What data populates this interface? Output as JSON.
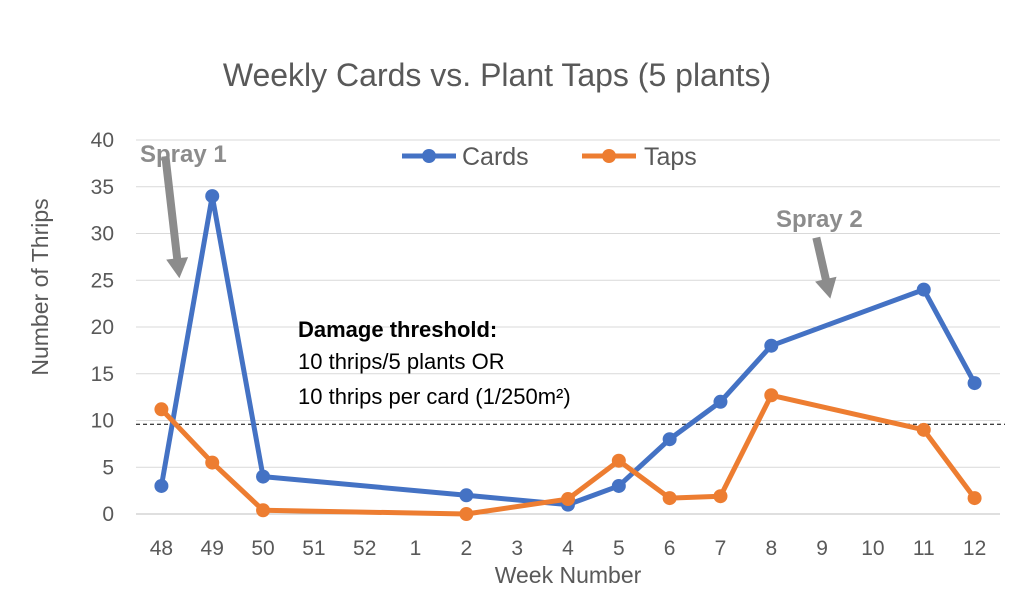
{
  "chart_data": {
    "type": "line",
    "title": "Weekly Cards vs. Plant Taps (5 plants)",
    "xlabel": "Week Number",
    "ylabel": "Number of Thrips",
    "categories": [
      "48",
      "49",
      "50",
      "51",
      "52",
      "1",
      "2",
      "3",
      "4",
      "5",
      "6",
      "7",
      "8",
      "9",
      "10",
      "11",
      "12"
    ],
    "ylim": [
      0,
      40
    ],
    "yticks": [
      0,
      5,
      10,
      15,
      20,
      25,
      30,
      35,
      40
    ],
    "grid": true,
    "legend_position": "top",
    "series": [
      {
        "name": "Cards",
        "color": "#4472c4",
        "points": [
          {
            "x": "48",
            "y": 3
          },
          {
            "x": "49",
            "y": 34
          },
          {
            "x": "50",
            "y": 4
          },
          {
            "x": "2",
            "y": 2
          },
          {
            "x": "4",
            "y": 1
          },
          {
            "x": "5",
            "y": 3
          },
          {
            "x": "6",
            "y": 8
          },
          {
            "x": "7",
            "y": 12
          },
          {
            "x": "8",
            "y": 18
          },
          {
            "x": "11",
            "y": 24
          },
          {
            "x": "12",
            "y": 14
          }
        ]
      },
      {
        "name": "Taps",
        "color": "#ed7d31",
        "points": [
          {
            "x": "48",
            "y": 11.2
          },
          {
            "x": "49",
            "y": 5.5
          },
          {
            "x": "50",
            "y": 0.4
          },
          {
            "x": "2",
            "y": 0
          },
          {
            "x": "4",
            "y": 1.6
          },
          {
            "x": "5",
            "y": 5.7
          },
          {
            "x": "6",
            "y": 1.7
          },
          {
            "x": "7",
            "y": 1.9
          },
          {
            "x": "8",
            "y": 12.7
          },
          {
            "x": "11",
            "y": 9
          },
          {
            "x": "12",
            "y": 1.7
          }
        ]
      }
    ],
    "threshold": {
      "value": 9.6,
      "style": "dashed"
    },
    "annotations": {
      "threshold_heading": "Damage threshold:",
      "threshold_line1": "10 thrips/5 plants OR",
      "threshold_line2": "10 thrips per card (1/250m²)",
      "spray1": {
        "label": "Spray 1",
        "at_x": "48",
        "at_y": 25
      },
      "spray2": {
        "label": "Spray 2",
        "at_x": "8",
        "at_y": 22.5
      }
    }
  }
}
